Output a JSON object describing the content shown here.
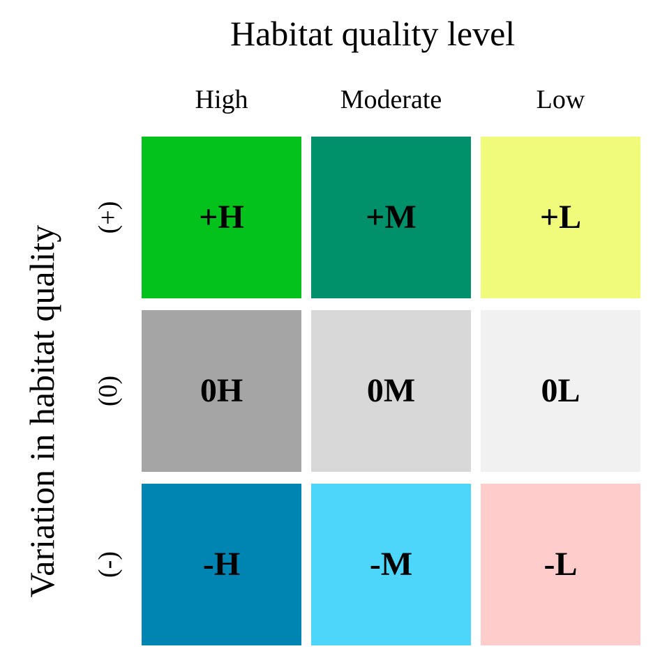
{
  "title": "Habitat quality level",
  "y_title": "Variation in habitat quality",
  "columns": [
    "High",
    "Moderate",
    "Low"
  ],
  "rows": [
    "(+)",
    "(0)",
    "(-)"
  ],
  "cells": [
    [
      {
        "label": "+H",
        "color": "#03C21C"
      },
      {
        "label": "+M",
        "color": "#00906A"
      },
      {
        "label": "+L",
        "color": "#F0FB7B"
      }
    ],
    [
      {
        "label": "0H",
        "color": "#A5A5A5"
      },
      {
        "label": "0M",
        "color": "#D8D8D8"
      },
      {
        "label": "0L",
        "color": "#F1F1F1"
      }
    ],
    [
      {
        "label": "-H",
        "color": "#0085B2"
      },
      {
        "label": "-M",
        "color": "#4DD6FA"
      },
      {
        "label": "-L",
        "color": "#FFCCCC"
      }
    ]
  ]
}
